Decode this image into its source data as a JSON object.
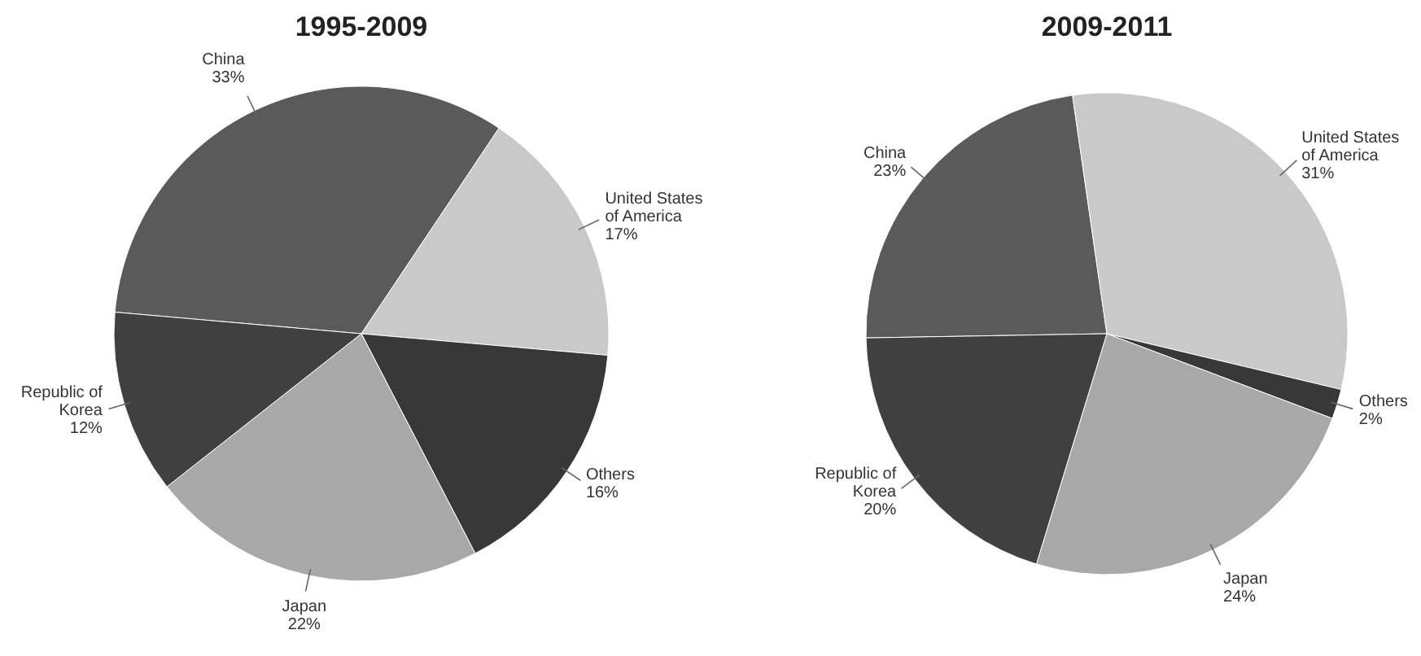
{
  "chart_data": [
    {
      "type": "pie",
      "title": "1995-2009",
      "categories": [
        "China",
        "United States of America",
        "Others",
        "Japan",
        "Republic of Korea"
      ],
      "values": [
        33,
        17,
        16,
        22,
        12
      ],
      "value_labels": [
        "33%",
        "17%",
        "16%",
        "22%",
        "12%"
      ],
      "colors": [
        "#5a5a5a",
        "#c9c9c9",
        "#383838",
        "#a8a8a8",
        "#404040"
      ]
    },
    {
      "type": "pie",
      "title": "2009-2011",
      "categories": [
        "China",
        "United States of America",
        "Others",
        "Japan",
        "Republic of Korea"
      ],
      "values": [
        23,
        31,
        2,
        24,
        20
      ],
      "value_labels": [
        "23%",
        "31%",
        "2%",
        "24%",
        "20%"
      ],
      "colors": [
        "#5a5a5a",
        "#c9c9c9",
        "#383838",
        "#a8a8a8",
        "#404040"
      ]
    }
  ]
}
